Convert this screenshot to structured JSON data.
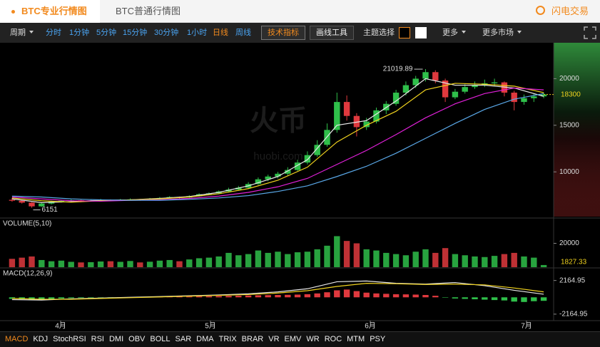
{
  "header": {
    "tabs": [
      "BTC专业行情图",
      "BTC普通行情图"
    ],
    "action": "闪电交易"
  },
  "toolbar": {
    "period": "周期",
    "intervals": [
      "分时",
      "1分钟",
      "5分钟",
      "15分钟",
      "30分钟",
      "1小时",
      "日线",
      "周线"
    ],
    "active_interval": "日线",
    "buttons": [
      "技术指标",
      "画线工具"
    ],
    "theme": "主题选择",
    "more": "更多",
    "more_markets": "更多市场"
  },
  "chart_data": {
    "type": "candlestick",
    "watermark": [
      "火币",
      "huobi.com"
    ],
    "up_color": "#2fbf4a",
    "down_color": "#e0393e",
    "ylim": [
      5200,
      23700
    ],
    "yticks": [
      10000,
      15000,
      20000
    ],
    "candles": [
      [
        7000,
        7200,
        6800,
        6900
      ],
      [
        6900,
        7000,
        6600,
        6700
      ],
      [
        6700,
        6750,
        6151,
        6300
      ],
      [
        6300,
        6700,
        6250,
        6600
      ],
      [
        6600,
        6900,
        6500,
        6800
      ],
      [
        6800,
        7000,
        6700,
        6900
      ],
      [
        6900,
        7050,
        6800,
        6950
      ],
      [
        6950,
        7000,
        6750,
        6850
      ],
      [
        6850,
        7000,
        6800,
        6900
      ],
      [
        6900,
        7100,
        6850,
        7000
      ],
      [
        7000,
        7050,
        6850,
        6950
      ],
      [
        6950,
        7100,
        6900,
        7000
      ],
      [
        7000,
        7150,
        6950,
        7050
      ],
      [
        7050,
        7100,
        6900,
        7000
      ],
      [
        7000,
        7200,
        6950,
        7100
      ],
      [
        7100,
        7300,
        7050,
        7200
      ],
      [
        7200,
        7400,
        7150,
        7300
      ],
      [
        7300,
        7350,
        7150,
        7250
      ],
      [
        7250,
        7500,
        7200,
        7400
      ],
      [
        7400,
        7700,
        7350,
        7600
      ],
      [
        7600,
        7800,
        7500,
        7700
      ],
      [
        7700,
        8000,
        7600,
        7900
      ],
      [
        7900,
        8300,
        7800,
        8100
      ],
      [
        8100,
        8500,
        8000,
        8300
      ],
      [
        8300,
        8900,
        8200,
        8700
      ],
      [
        8700,
        9400,
        8600,
        9200
      ],
      [
        9200,
        9700,
        9000,
        9500
      ],
      [
        9500,
        10000,
        9300,
        9800
      ],
      [
        9800,
        10500,
        9600,
        10200
      ],
      [
        10200,
        11300,
        10100,
        11000
      ],
      [
        11000,
        12200,
        10800,
        11800
      ],
      [
        11800,
        13400,
        11600,
        12900
      ],
      [
        12900,
        15200,
        12700,
        14500
      ],
      [
        14500,
        18500,
        14200,
        17500
      ],
      [
        17500,
        18200,
        15500,
        16000
      ],
      [
        16000,
        16300,
        13800,
        14800
      ],
      [
        14800,
        15800,
        14500,
        15400
      ],
      [
        15400,
        16900,
        15200,
        16600
      ],
      [
        16600,
        17600,
        16200,
        17300
      ],
      [
        17300,
        18800,
        17100,
        18500
      ],
      [
        18500,
        19700,
        18200,
        19300
      ],
      [
        19300,
        20300,
        19000,
        20000
      ],
      [
        20000,
        21019.89,
        19700,
        20700
      ],
      [
        20700,
        20900,
        19500,
        19800
      ],
      [
        19800,
        20000,
        17500,
        18000
      ],
      [
        18000,
        18900,
        17800,
        18600
      ],
      [
        18600,
        19400,
        18400,
        19100
      ],
      [
        19100,
        19700,
        18900,
        19300
      ],
      [
        19300,
        19900,
        19100,
        19500
      ],
      [
        19500,
        20000,
        19200,
        19600
      ],
      [
        19600,
        19700,
        18100,
        18500
      ],
      [
        18500,
        18700,
        16600,
        17500
      ],
      [
        17500,
        18300,
        17200,
        17900
      ],
      [
        17900,
        18400,
        17500,
        18100
      ],
      [
        18100,
        18500,
        17900,
        18300
      ]
    ],
    "ma_series": [
      {
        "color": "#e8e8e8",
        "values": [
          7100,
          6700,
          6800,
          6950,
          7000,
          7150,
          7350,
          7800,
          8500,
          9500,
          11300,
          15000,
          15500,
          17600,
          20000,
          19300,
          19300,
          19000,
          18100
        ]
      },
      {
        "color": "#f0d21e",
        "values": [
          7200,
          6900,
          6750,
          6900,
          7000,
          7100,
          7300,
          7650,
          8200,
          9100,
          10500,
          13200,
          15000,
          16500,
          18800,
          19500,
          19400,
          19200,
          18500
        ]
      },
      {
        "color": "#e020d8",
        "values": [
          7300,
          7100,
          6900,
          6850,
          6950,
          7000,
          7150,
          7400,
          7800,
          8400,
          9300,
          10800,
          12300,
          14000,
          15800,
          17300,
          18400,
          19000,
          18800
        ]
      },
      {
        "color": "#5aa8e8",
        "values": [
          7400,
          7300,
          7100,
          7000,
          6950,
          6950,
          7050,
          7200,
          7450,
          7900,
          8500,
          9500,
          10600,
          12000,
          13600,
          15200,
          16700,
          17800,
          18400
        ]
      }
    ],
    "volume": {
      "title": "VOLUME(5,10)",
      "ylim": [
        0,
        40000
      ],
      "yticks": [
        20000
      ],
      "values": [
        7000,
        8000,
        9000,
        6000,
        5000,
        5500,
        4500,
        4000,
        4200,
        4800,
        5000,
        4500,
        5200,
        4000,
        4600,
        5500,
        6000,
        5000,
        6500,
        7500,
        8000,
        9000,
        12000,
        10000,
        11000,
        14000,
        12000,
        13000,
        11000,
        12500,
        13000,
        15000,
        18000,
        26000,
        22000,
        20000,
        15000,
        14000,
        12000,
        11000,
        10000,
        13000,
        15000,
        12000,
        16000,
        11000,
        10000,
        9000,
        8500,
        9500,
        11000,
        12000,
        9000,
        8000,
        1827.33
      ]
    },
    "macd": {
      "title": "MACD(12,26,9)",
      "ylim": [
        -3000,
        3600
      ],
      "yticks": [
        -2164.95,
        2164.95
      ],
      "pos_color": "#e0393e",
      "neg_color": "#2fbf4a",
      "hist": [
        -200,
        -250,
        -300,
        -250,
        -200,
        -150,
        -100,
        -80,
        -60,
        -40,
        -20,
        10,
        30,
        40,
        50,
        60,
        80,
        90,
        100,
        120,
        140,
        160,
        180,
        200,
        230,
        260,
        280,
        300,
        320,
        350,
        400,
        500,
        650,
        900,
        1000,
        800,
        600,
        500,
        450,
        400,
        380,
        350,
        300,
        200,
        -50,
        -150,
        -200,
        -250,
        -300,
        -350,
        -400,
        -550,
        -600,
        -500,
        -450
      ],
      "lines": [
        {
          "color": "#e8e8e8",
          "values": [
            -300,
            -350,
            -200,
            -100,
            0,
            100,
            200,
            300,
            450,
            700,
            1100,
            2000,
            2100,
            1800,
            1700,
            1900,
            1500,
            900,
            400
          ]
        },
        {
          "color": "#f0d21e",
          "values": [
            -150,
            -250,
            -250,
            -150,
            -50,
            50,
            150,
            250,
            350,
            550,
            850,
            1400,
            1800,
            1750,
            1650,
            1700,
            1600,
            1200,
            700
          ]
        }
      ]
    },
    "x_labels": [
      "4月",
      "5月",
      "6月",
      "7月"
    ]
  },
  "indicator_tabs": [
    "MACD",
    "KDJ",
    "StochRSI",
    "RSI",
    "DMI",
    "OBV",
    "BOLL",
    "SAR",
    "DMA",
    "TRIX",
    "BRAR",
    "VR",
    "EMV",
    "WR",
    "ROC",
    "MTM",
    "PSY"
  ],
  "active_indicator": "MACD"
}
